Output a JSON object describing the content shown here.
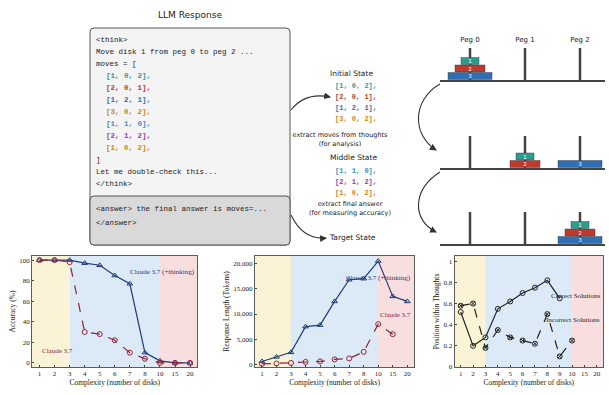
{
  "diagram": {
    "title": "LLM Response",
    "response": {
      "lines_before": [
        "<think>",
        "Move disk 1 from peg 0 to peg 2 ...",
        "moves = ["
      ],
      "moves": [
        "[1, 0, 2],",
        "[2, 0, 1],",
        "[1, 2, 1],",
        "[3, 0, 2],",
        "[1, 1, 0],",
        "[2, 1, 2],",
        "[1, 0, 2],"
      ],
      "move_colors": [
        "#2a9d8f",
        "#c0392b",
        "#2f6fb5",
        "#d4831a",
        "#3a8fc8",
        "#8e44ad",
        "#d4831a"
      ],
      "lines_after": [
        "]",
        "Let me double-check this...",
        "</think>"
      ],
      "answer_lines": [
        "<answer> the final answer is moves=...",
        "</answer>"
      ]
    },
    "arrows": [
      {
        "text": "extract moves from thoughts",
        "note": "(for analysis)"
      },
      {
        "text": "extract final answer",
        "note": "(for measuring accuracy)"
      }
    ],
    "peg_labels": [
      "Peg 0",
      "Peg 1",
      "Peg 2"
    ],
    "disk_colors": [
      "#2a9d8f",
      "#c0392b",
      "#2f6fb5"
    ],
    "states": [
      {
        "label": "Initial State",
        "pegs": [
          [
            3,
            2,
            1
          ],
          [],
          []
        ]
      },
      {
        "label": "Middle State",
        "pegs": [
          [],
          [
            2,
            1
          ],
          [
            3
          ]
        ]
      },
      {
        "label": "Target State",
        "pegs": [
          [],
          [],
          [
            3,
            2,
            1
          ]
        ]
      }
    ],
    "transitions": [
      {
        "moves": [
          "[1, 0, 2],",
          "[2, 0, 1],",
          "[1, 2, 1],",
          "[3, 0, 2],"
        ],
        "colors": [
          "#2a9d8f",
          "#c0392b",
          "#2f6fb5",
          "#d4831a"
        ]
      },
      {
        "moves": [
          "[1, 1, 0],",
          "[2, 1, 2],",
          "[1, 0, 2],"
        ],
        "colors": [
          "#3a8fc8",
          "#8e44ad",
          "#d4831a"
        ]
      }
    ]
  },
  "chart_data": [
    {
      "type": "line",
      "x_label": "Complexity (number of disks)",
      "y_label": "Accuracy (%)",
      "categories": [
        "1",
        "2",
        "3",
        "4",
        "5",
        "6",
        "7",
        "8",
        "10",
        "15",
        "20"
      ],
      "ylim": [
        -4,
        104
      ],
      "yticks": [
        0,
        20,
        40,
        60,
        80,
        100
      ],
      "grid": false,
      "regions": [
        {
          "to": "3",
          "color": "#fbf3d5"
        },
        {
          "from": "3",
          "to": "10",
          "color": "#dbeaf6"
        },
        {
          "from": "10",
          "color": "#f8dede"
        }
      ],
      "series": [
        {
          "name": "Claude 3.7 (+thinking)",
          "color": "#1f3c78",
          "marker": "triangle-up-open",
          "line_style": "solid",
          "values": [
            100,
            100,
            100,
            97,
            95,
            85,
            77,
            10,
            2,
            0,
            0
          ]
        },
        {
          "name": "Claude 3.7",
          "color": "#8e2339",
          "marker": "circle-open",
          "line_style": "dash",
          "values": [
            100,
            100,
            98,
            30,
            28,
            22,
            10,
            4,
            0,
            0,
            0
          ]
        }
      ]
    },
    {
      "type": "line",
      "x_label": "Complexity (number of disks)",
      "y_label": "Response Length (Tokens)",
      "categories": [
        "1",
        "2",
        "3",
        "4",
        "5",
        "6",
        "7",
        "8",
        "10",
        "15",
        "20"
      ],
      "ylim": [
        -500,
        21500
      ],
      "yticks": [
        0,
        {
          "value": 5000,
          "label": "5,000"
        },
        {
          "value": 10000,
          "label": "10,000"
        },
        {
          "value": 15000,
          "label": "15,000"
        },
        {
          "value": 20000,
          "label": "20,000"
        }
      ],
      "grid": false,
      "regions": [
        {
          "to": "3",
          "color": "#fbf3d5"
        },
        {
          "from": "3",
          "to": "10",
          "color": "#dbeaf6"
        },
        {
          "from": "10",
          "color": "#f8dede"
        }
      ],
      "series": [
        {
          "name": "Claude 3.7 (+thinking)",
          "color": "#1f3c78",
          "marker": "triangle-up-open",
          "line_style": "solid",
          "values": [
            600,
            1500,
            2400,
            7500,
            7800,
            12500,
            16800,
            17000,
            20500,
            13500,
            12500
          ]
        },
        {
          "name": "Claude 3.7",
          "color": "#8e2339",
          "marker": "circle-open",
          "line_style": "dash",
          "values": [
            100,
            200,
            300,
            500,
            600,
            1000,
            1200,
            2500,
            8000,
            6000,
            null
          ]
        }
      ]
    },
    {
      "type": "line",
      "x_label": "Complexity (number of disks)",
      "y_label": "Position within Thoughts",
      "categories": [
        "1",
        "2",
        "3",
        "4",
        "5",
        "6",
        "7",
        "8",
        "9",
        "10",
        "15",
        "20"
      ],
      "ylim": [
        0,
        1.05
      ],
      "yticks": [
        0,
        0.2,
        0.4,
        0.6,
        0.8,
        1
      ],
      "grid": false,
      "regions": [
        {
          "to": "3",
          "color": "#fbf3d5"
        },
        {
          "from": "3",
          "to": "10",
          "color": "#dbeaf6"
        },
        {
          "from": "10",
          "color": "#f8dede"
        }
      ],
      "series": [
        {
          "name": "Correct Solutions",
          "color": "#222222",
          "marker": "circle-open",
          "line_style": "solid",
          "values": [
            0.52,
            0.2,
            0.28,
            0.55,
            0.62,
            0.7,
            0.75,
            0.82,
            0.65,
            null,
            null,
            null
          ]
        },
        {
          "name": "Incorrect Solutions",
          "color": "#222222",
          "marker": "circle-x-open",
          "line_style": "dash",
          "values": [
            0.58,
            0.6,
            0.18,
            0.35,
            0.28,
            0.25,
            0.22,
            0.5,
            0.1,
            0.25,
            null,
            null
          ]
        }
      ]
    }
  ]
}
